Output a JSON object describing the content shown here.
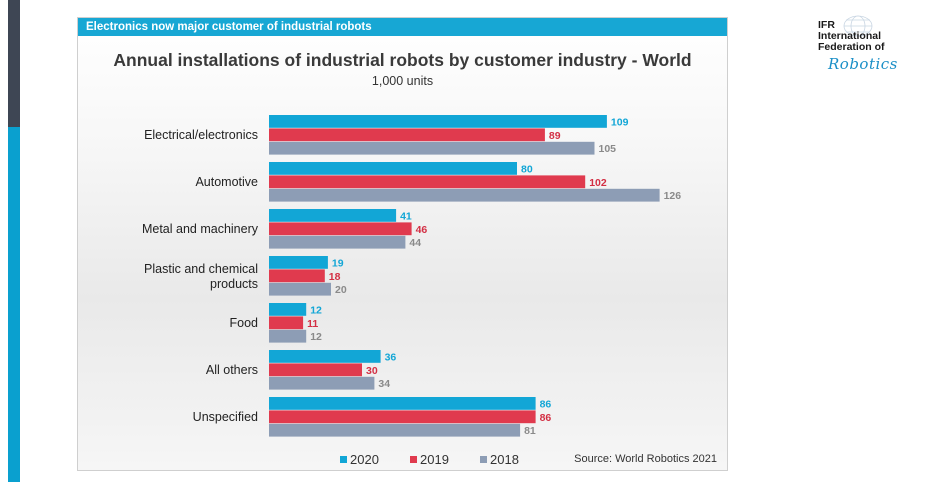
{
  "slide": {
    "banner": "Electronics now major customer of industrial robots",
    "source": "Source: World Robotics 2021"
  },
  "logo": {
    "line1": "IFR",
    "line2": "International",
    "line3": "Federation of",
    "line4": "Robotics"
  },
  "colors": {
    "accent_blue": "#0aa0cf",
    "sidebar_dark": "#3e4654"
  },
  "chart_data": {
    "type": "bar",
    "orientation": "horizontal",
    "title": "Annual installations of industrial robots by customer industry - World",
    "subtitle": "1,000 units",
    "categories": [
      "Electrical/electronics",
      "Automotive",
      "Metal and machinery",
      "Plastic and chemical products",
      "Food",
      "All others",
      "Unspecified"
    ],
    "series": [
      {
        "name": "2020",
        "color": "#12a6d6",
        "label_color": "#12a6d6",
        "values": [
          109,
          80,
          41,
          19,
          12,
          36,
          86
        ]
      },
      {
        "name": "2019",
        "color": "#e03a4e",
        "label_color": "#d32f44",
        "values": [
          89,
          102,
          46,
          18,
          11,
          30,
          86
        ]
      },
      {
        "name": "2018",
        "color": "#8d9db5",
        "label_color": "#8a8a8a",
        "values": [
          105,
          126,
          44,
          20,
          12,
          34,
          81
        ]
      }
    ],
    "legend": "bottom",
    "grid": false
  }
}
